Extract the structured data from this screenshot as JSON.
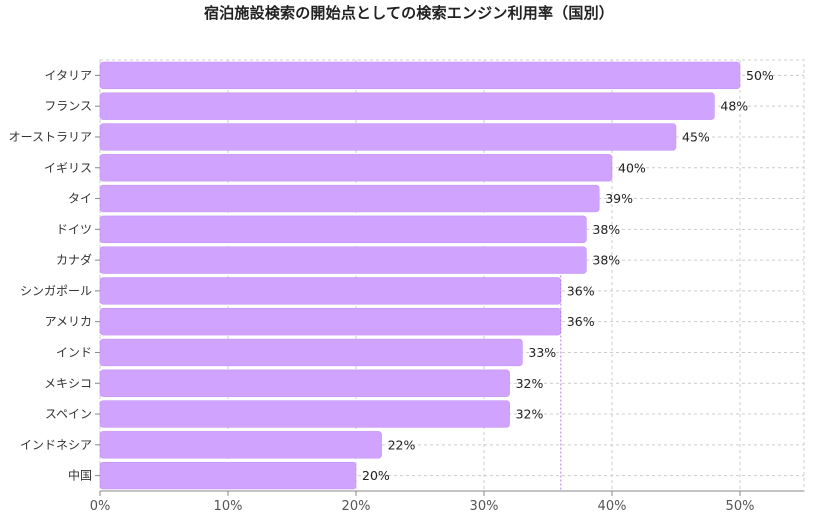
{
  "chart_data": {
    "type": "bar",
    "orientation": "horizontal",
    "title": "宿泊施設検索の開始点としての検索エンジン利用率（国別）",
    "xlabel": "",
    "ylabel": "",
    "categories": [
      "イタリア",
      "フランス",
      "オーストラリア",
      "イギリス",
      "タイ",
      "ドイツ",
      "カナダ",
      "シンガポール",
      "アメリカ",
      "インド",
      "メキシコ",
      "スペイン",
      "インドネシア",
      "中国"
    ],
    "values": [
      50,
      48,
      45,
      40,
      39,
      38,
      38,
      36,
      36,
      33,
      32,
      32,
      22,
      20
    ],
    "value_labels": [
      "50%",
      "48%",
      "45%",
      "40%",
      "39%",
      "38%",
      "38%",
      "36%",
      "36%",
      "33%",
      "32%",
      "32%",
      "22%",
      "20%"
    ],
    "xlim": [
      0,
      55
    ],
    "xticks": [
      0,
      10,
      20,
      30,
      40,
      50
    ],
    "xtick_labels": [
      "0%",
      "10%",
      "20%",
      "30%",
      "40%",
      "50%"
    ],
    "reference_line": 36,
    "grid": true,
    "colors": {
      "bar": "#d0a3ff",
      "bar_stroke": "#c08cf5",
      "grid": "#cccccc",
      "reference_line": "#b07fd8",
      "axis": "#888888"
    }
  }
}
